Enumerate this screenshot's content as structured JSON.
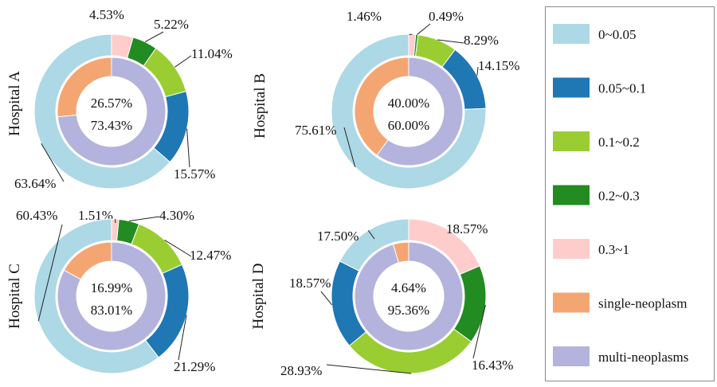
{
  "chart_data": [
    {
      "type": "pie",
      "title": "Hospital A",
      "outer": {
        "categories": [
          "0.3~1",
          "0.2~0.3",
          "0.1~0.2",
          "0.05~0.1",
          "0~0.05"
        ],
        "values": [
          4.53,
          5.22,
          11.04,
          15.57,
          63.64
        ],
        "labels": [
          "4.53%",
          "5.22%",
          "11.04%",
          "15.57%",
          "63.64%"
        ]
      },
      "inner": {
        "categories": [
          "multi-neoplasms",
          "single-neoplasm"
        ],
        "values": [
          73.43,
          26.57
        ],
        "labels": [
          "73.43%",
          "26.57%"
        ]
      }
    },
    {
      "type": "pie",
      "title": "Hospital B",
      "outer": {
        "categories": [
          "0.3~1",
          "0.2~0.3",
          "0.1~0.2",
          "0.05~0.1",
          "0~0.05"
        ],
        "values": [
          1.46,
          0.49,
          8.29,
          14.15,
          75.61
        ],
        "labels": [
          "1.46%",
          "0.49%",
          "8.29%",
          "14.15%",
          "75.61%"
        ]
      },
      "inner": {
        "categories": [
          "multi-neoplasms",
          "single-neoplasm"
        ],
        "values": [
          60.0,
          40.0
        ],
        "labels": [
          "60.00%",
          "40.00%"
        ]
      }
    },
    {
      "type": "pie",
      "title": "Hospital C",
      "outer": {
        "categories": [
          "0.3~1",
          "0.2~0.3",
          "0.1~0.2",
          "0.05~0.1",
          "0~0.05"
        ],
        "values": [
          1.51,
          4.3,
          12.47,
          21.29,
          60.43
        ],
        "labels": [
          "1.51%",
          "4.30%",
          "12.47%",
          "21.29%",
          "60.43%"
        ]
      },
      "inner": {
        "categories": [
          "multi-neoplasms",
          "single-neoplasm"
        ],
        "values": [
          83.01,
          16.99
        ],
        "labels": [
          "83.01%",
          "16.99%"
        ]
      }
    },
    {
      "type": "pie",
      "title": "Hospital D",
      "outer": {
        "categories": [
          "0.3~1",
          "0.2~0.3",
          "0.1~0.2",
          "0.05~0.1",
          "0~0.05"
        ],
        "values": [
          18.57,
          16.43,
          28.93,
          18.57,
          17.5
        ],
        "labels": [
          "18.57%",
          "16.43%",
          "28.93%",
          "18.57%",
          "17.50%"
        ]
      },
      "inner": {
        "categories": [
          "multi-neoplasms",
          "single-neoplasm"
        ],
        "values": [
          95.36,
          4.64
        ],
        "labels": [
          "95.36%",
          "4.64%"
        ]
      }
    }
  ],
  "legend": {
    "placement": "right",
    "items": [
      {
        "label": "0~0.05",
        "color": "#add8e6"
      },
      {
        "label": "0.05~0.1",
        "color": "#1f77b4"
      },
      {
        "label": "0.1~0.2",
        "color": "#9acd32"
      },
      {
        "label": "0.2~0.3",
        "color": "#228b22"
      },
      {
        "label": "0.3~1",
        "color": "#ffcccc"
      },
      {
        "label": "single-neoplasm",
        "color": "#f4a672"
      },
      {
        "label": "multi-neoplasms",
        "color": "#b3b3dd"
      }
    ]
  }
}
